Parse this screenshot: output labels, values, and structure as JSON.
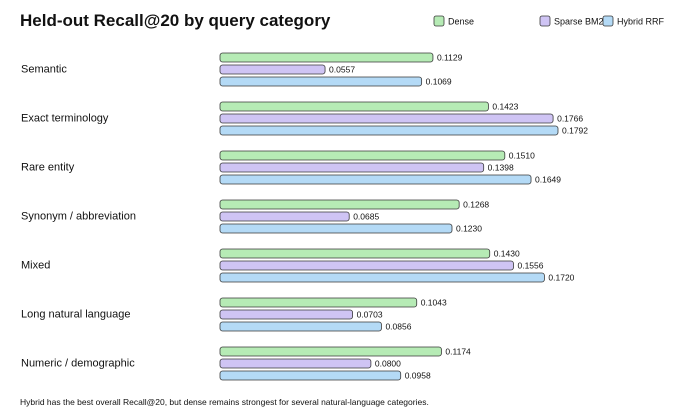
{
  "chart_data": {
    "type": "bar",
    "orientation": "horizontal",
    "title": "Held-out Recall@20 by query category",
    "xlabel": "",
    "ylabel": "",
    "grid": false,
    "legend_position": "top-right",
    "categories": [
      "Semantic",
      "Exact terminology",
      "Rare entity",
      "Synonym / abbreviation",
      "Mixed",
      "Long natural language",
      "Numeric / demographic"
    ],
    "series": [
      {
        "name": "Dense",
        "color": "#b6ebb5",
        "values": [
          0.1129,
          0.1423,
          0.151,
          0.1268,
          0.143,
          0.1043,
          0.1174
        ],
        "labels": [
          "0.1129",
          "0.1423",
          "0.1510",
          "0.1268",
          "0.1430",
          "0.1043",
          "0.1174"
        ]
      },
      {
        "name": "Sparse BM25",
        "color": "#cfc4f4",
        "values": [
          0.0557,
          0.1766,
          0.1398,
          0.0685,
          0.1556,
          0.0703,
          0.08
        ],
        "labels": [
          "0.0557",
          "0.1766",
          "0.1398",
          "0.0685",
          "0.1556",
          "0.0703",
          "0.0800"
        ]
      },
      {
        "name": "Hybrid RRF",
        "color": "#b4daf6",
        "values": [
          0.1069,
          0.1792,
          0.1649,
          0.123,
          0.172,
          0.0856,
          0.0958
        ],
        "labels": [
          "0.1069",
          "0.1792",
          "0.1649",
          "0.1230",
          "0.1720",
          "0.0856",
          "0.0958"
        ]
      }
    ],
    "xlim": [
      0,
      0.1792
    ],
    "footnote": "Hybrid has the best overall Recall@20, but dense remains strongest for several natural-language categories."
  }
}
